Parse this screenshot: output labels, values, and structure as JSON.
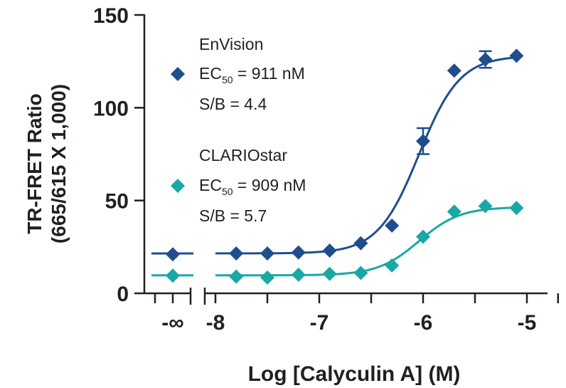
{
  "chart_data": {
    "type": "line",
    "title": "",
    "xlabel": "Log [Calyculin A] (M)",
    "ylabel_line1": "TR-FRET Ratio",
    "ylabel_line2": "(665/615 X 1,000)",
    "xlim": [
      -8,
      -5
    ],
    "ylim": [
      0,
      150
    ],
    "x_ticks": [
      -8,
      -7,
      -6,
      -5
    ],
    "x_tick_labels": [
      "-8",
      "-7",
      "-6",
      "-5"
    ],
    "x_break_label": "-∞",
    "y_ticks": [
      0,
      50,
      100,
      150
    ],
    "y_tick_labels": [
      "0",
      "50",
      "100",
      "150"
    ],
    "grid": false,
    "legend_position": "top-left",
    "series": [
      {
        "name": "EnVision",
        "ec50_label": "EC",
        "ec50_sub": "50",
        "ec50_value": " = 911 nM",
        "sb_text": "S/B = 4.4",
        "color": "#1f4e8c",
        "marker": "diamond",
        "zero_value": 21,
        "x": [
          -7.8,
          -7.5,
          -7.2,
          -6.9,
          -6.6,
          -6.3,
          -6.0,
          -5.7,
          -5.4,
          -5.1
        ],
        "values": [
          21.5,
          21.5,
          22,
          23,
          27,
          36.5,
          82,
          120,
          126,
          128
        ],
        "errors": [
          0,
          0,
          0,
          0,
          0,
          0,
          7,
          0,
          4.5,
          0
        ],
        "fit": {
          "bottom": 21.5,
          "top": 128,
          "logec50": -6.04,
          "hill": 2.2
        }
      },
      {
        "name": "CLARIOstar",
        "ec50_label": "EC",
        "ec50_sub": "50",
        "ec50_value": " = 909 nM",
        "sb_text": "S/B = 5.7",
        "color": "#1aa8a4",
        "marker": "diamond",
        "zero_value": 9.5,
        "x": [
          -7.8,
          -7.5,
          -7.2,
          -6.9,
          -6.6,
          -6.3,
          -6.0,
          -5.7,
          -5.4,
          -5.1
        ],
        "values": [
          9,
          8.5,
          10,
          10.5,
          11,
          15,
          30.5,
          44,
          47,
          46
        ],
        "errors": [
          0,
          0,
          0,
          0,
          0,
          0,
          0,
          0,
          0,
          0
        ],
        "fit": {
          "bottom": 9.7,
          "top": 46.5,
          "logec50": -6.04,
          "hill": 2.2
        }
      }
    ]
  }
}
